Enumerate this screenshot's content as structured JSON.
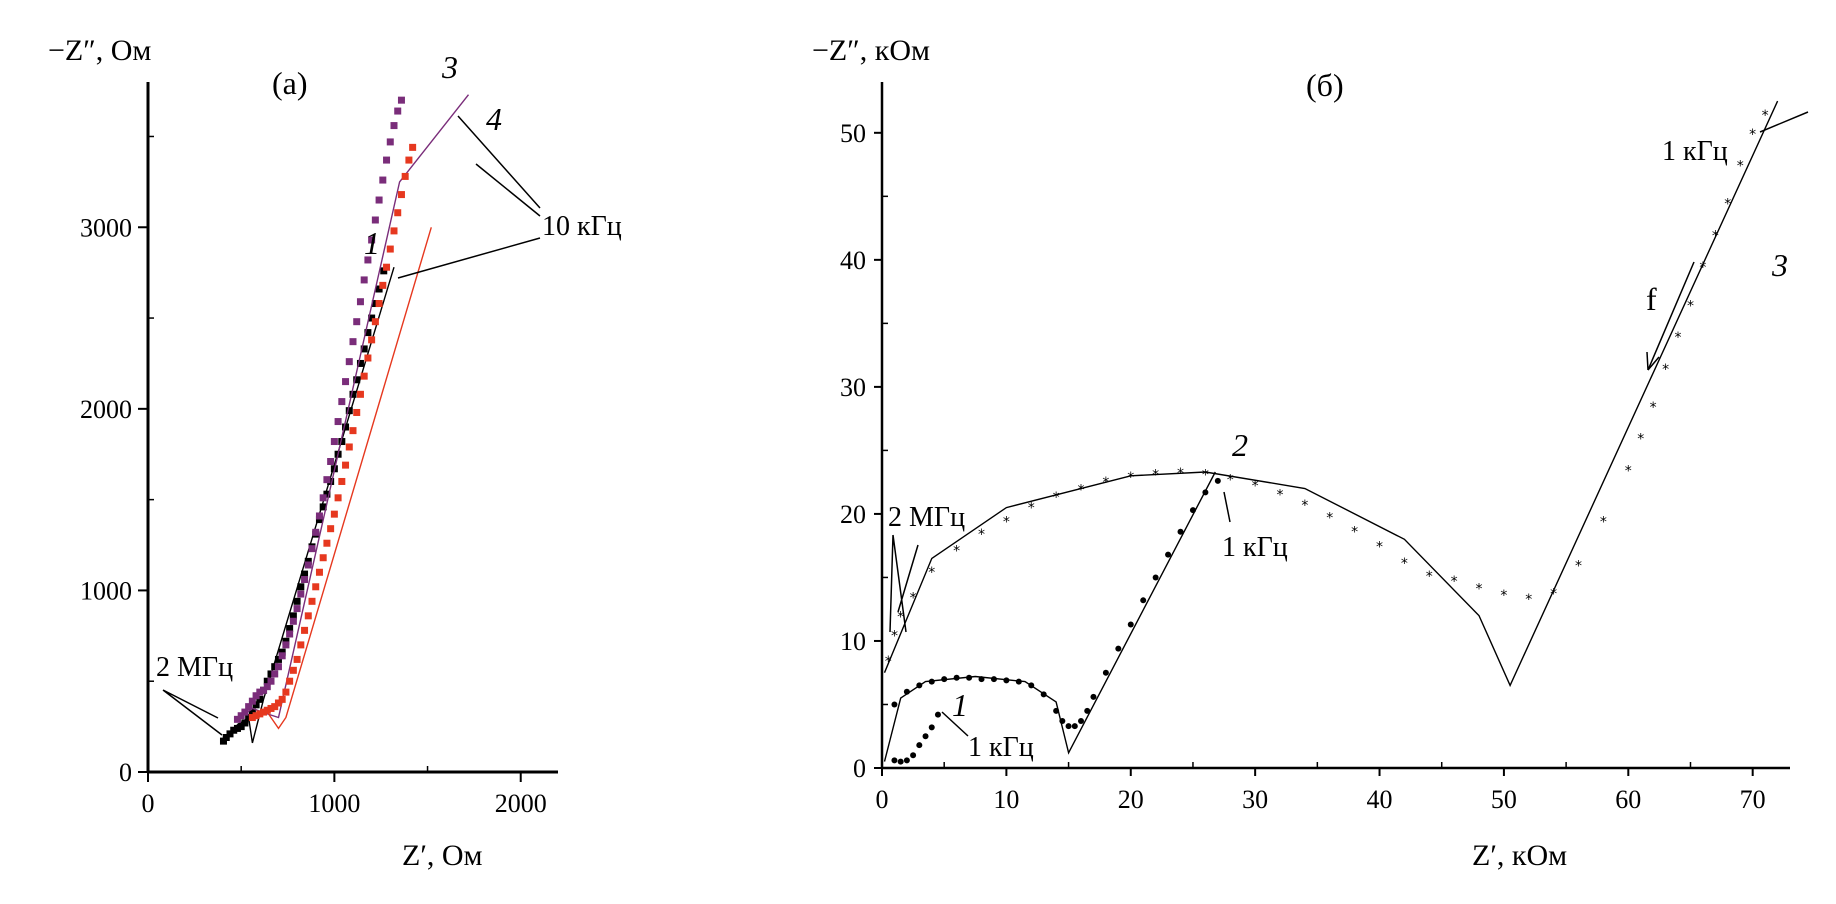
{
  "chart_data": [
    {
      "panel": "a",
      "type": "scatter",
      "title": "(а)",
      "ylabel": "−Z″, Ом",
      "xlabel": "Z′, Ом",
      "xlim": [
        0,
        2200
      ],
      "ylim": [
        0,
        3800
      ],
      "xticks": [
        0,
        1000,
        2000
      ],
      "yticks": [
        0,
        1000,
        2000,
        3000
      ],
      "xtick_labels": [
        "0",
        "1000",
        "2000"
      ],
      "ytick_labels": [
        "0",
        "1000",
        "2000",
        "3000"
      ],
      "annotations": [
        {
          "text": "2 МГц",
          "at": [
            420,
            250
          ]
        },
        {
          "text": "10 кГц",
          "at": [
            1300,
            2800
          ]
        }
      ],
      "series": [
        {
          "name": "1",
          "color": "#000000",
          "marker": "square",
          "points": [
            [
              405,
              170
            ],
            [
              420,
              190
            ],
            [
              440,
              210
            ],
            [
              460,
              230
            ],
            [
              480,
              240
            ],
            [
              500,
              250
            ],
            [
              520,
              270
            ],
            [
              540,
              300
            ],
            [
              560,
              330
            ],
            [
              580,
              370
            ],
            [
              600,
              400
            ],
            [
              620,
              450
            ],
            [
              640,
              500
            ],
            [
              660,
              540
            ],
            [
              680,
              580
            ],
            [
              700,
              620
            ],
            [
              720,
              660
            ],
            [
              740,
              720
            ],
            [
              760,
              790
            ],
            [
              780,
              860
            ],
            [
              800,
              940
            ],
            [
              820,
              1020
            ],
            [
              840,
              1090
            ],
            [
              860,
              1160
            ],
            [
              880,
              1240
            ],
            [
              900,
              1310
            ],
            [
              920,
              1390
            ],
            [
              940,
              1460
            ],
            [
              960,
              1530
            ],
            [
              980,
              1600
            ],
            [
              1000,
              1670
            ],
            [
              1020,
              1750
            ],
            [
              1040,
              1820
            ],
            [
              1060,
              1900
            ],
            [
              1080,
              1990
            ],
            [
              1100,
              2080
            ],
            [
              1120,
              2160
            ],
            [
              1140,
              2250
            ],
            [
              1160,
              2330
            ],
            [
              1180,
              2420
            ],
            [
              1200,
              2500
            ],
            [
              1220,
              2580
            ],
            [
              1240,
              2660
            ],
            [
              1265,
              2760
            ]
          ],
          "fit": [
            [
              400,
              180
            ],
            [
              480,
              260
            ],
            [
              540,
              300
            ],
            [
              560,
              160
            ],
            [
              620,
              400
            ],
            [
              1320,
              2780
            ]
          ]
        },
        {
          "name": "3",
          "color": "#7a2d7a",
          "marker": "square",
          "points": [
            [
              480,
              290
            ],
            [
              500,
              310
            ],
            [
              520,
              330
            ],
            [
              540,
              360
            ],
            [
              560,
              390
            ],
            [
              580,
              420
            ],
            [
              600,
              440
            ],
            [
              620,
              450
            ],
            [
              640,
              470
            ],
            [
              660,
              500
            ],
            [
              680,
              540
            ],
            [
              700,
              580
            ],
            [
              720,
              640
            ],
            [
              740,
              700
            ],
            [
              760,
              760
            ],
            [
              780,
              830
            ],
            [
              800,
              900
            ],
            [
              820,
              980
            ],
            [
              840,
              1060
            ],
            [
              860,
              1140
            ],
            [
              880,
              1230
            ],
            [
              900,
              1320
            ],
            [
              920,
              1410
            ],
            [
              940,
              1510
            ],
            [
              960,
              1610
            ],
            [
              980,
              1710
            ],
            [
              1000,
              1820
            ],
            [
              1020,
              1930
            ],
            [
              1040,
              2040
            ],
            [
              1060,
              2150
            ],
            [
              1080,
              2260
            ],
            [
              1100,
              2370
            ],
            [
              1120,
              2480
            ],
            [
              1140,
              2590
            ],
            [
              1160,
              2710
            ],
            [
              1180,
              2820
            ],
            [
              1200,
              2930
            ],
            [
              1220,
              3040
            ],
            [
              1240,
              3150
            ],
            [
              1260,
              3260
            ],
            [
              1280,
              3370
            ],
            [
              1300,
              3470
            ],
            [
              1320,
              3560
            ],
            [
              1340,
              3640
            ],
            [
              1360,
              3700
            ]
          ],
          "fit": [
            [
              470,
              280
            ],
            [
              560,
              350
            ],
            [
              640,
              320
            ],
            [
              700,
              300
            ],
            [
              1350,
              3250
            ],
            [
              1720,
              3730
            ]
          ]
        },
        {
          "name": "4",
          "color": "#e6381f",
          "marker": "square",
          "points": [
            [
              560,
              300
            ],
            [
              580,
              310
            ],
            [
              600,
              320
            ],
            [
              620,
              330
            ],
            [
              640,
              340
            ],
            [
              660,
              350
            ],
            [
              680,
              360
            ],
            [
              700,
              380
            ],
            [
              720,
              400
            ],
            [
              740,
              440
            ],
            [
              760,
              500
            ],
            [
              780,
              560
            ],
            [
              800,
              620
            ],
            [
              820,
              700
            ],
            [
              840,
              780
            ],
            [
              860,
              860
            ],
            [
              880,
              940
            ],
            [
              900,
              1020
            ],
            [
              920,
              1100
            ],
            [
              940,
              1180
            ],
            [
              960,
              1260
            ],
            [
              980,
              1340
            ],
            [
              1000,
              1420
            ],
            [
              1020,
              1510
            ],
            [
              1040,
              1600
            ],
            [
              1060,
              1690
            ],
            [
              1080,
              1790
            ],
            [
              1100,
              1880
            ],
            [
              1120,
              1980
            ],
            [
              1140,
              2080
            ],
            [
              1160,
              2180
            ],
            [
              1180,
              2280
            ],
            [
              1200,
              2380
            ],
            [
              1220,
              2480
            ],
            [
              1240,
              2580
            ],
            [
              1260,
              2680
            ],
            [
              1280,
              2780
            ],
            [
              1300,
              2880
            ],
            [
              1320,
              2980
            ],
            [
              1340,
              3080
            ],
            [
              1360,
              3180
            ],
            [
              1380,
              3280
            ],
            [
              1400,
              3370
            ],
            [
              1420,
              3440
            ]
          ],
          "fit": [
            [
              560,
              290
            ],
            [
              640,
              330
            ],
            [
              700,
              240
            ],
            [
              740,
              300
            ],
            [
              1520,
              3000
            ]
          ]
        }
      ]
    },
    {
      "panel": "b",
      "type": "scatter",
      "title": "(б)",
      "ylabel": "−Z″, кОм",
      "xlabel": "Z′, кОм",
      "xlim": [
        0,
        73
      ],
      "ylim": [
        0,
        54
      ],
      "xticks": [
        0,
        10,
        20,
        30,
        40,
        50,
        60,
        70
      ],
      "yticks": [
        0,
        10,
        20,
        30,
        40,
        50
      ],
      "xtick_labels": [
        "0",
        "10",
        "20",
        "30",
        "40",
        "50",
        "60",
        "70"
      ],
      "ytick_labels": [
        "0",
        "10",
        "20",
        "30",
        "40",
        "50"
      ],
      "annotations": [
        {
          "text": "2 МГц",
          "at": [
            1.5,
            15
          ]
        },
        {
          "text": "1 кГц",
          "at": [
            27,
            20.5
          ]
        },
        {
          "text": "1 кГц",
          "at": [
            5,
            3
          ]
        },
        {
          "text": "1 кГц",
          "at": [
            67,
            48
          ]
        },
        {
          "text": "f",
          "at": [
            62,
            37
          ]
        }
      ],
      "series": [
        {
          "name": "1",
          "color": "#000000",
          "marker": "dot",
          "points": [
            [
              1.0,
              0.6
            ],
            [
              1.5,
              0.5
            ],
            [
              2.0,
              0.6
            ],
            [
              2.5,
              1.0
            ],
            [
              3.0,
              1.8
            ],
            [
              3.5,
              2.5
            ],
            [
              4.0,
              3.2
            ],
            [
              4.5,
              4.2
            ]
          ],
          "fit": []
        },
        {
          "name": "2",
          "color": "#000000",
          "marker": "dot",
          "points": [
            [
              1.0,
              5.0
            ],
            [
              2.0,
              6.0
            ],
            [
              3.0,
              6.5
            ],
            [
              4.0,
              6.8
            ],
            [
              5.0,
              7.0
            ],
            [
              6.0,
              7.1
            ],
            [
              7.0,
              7.1
            ],
            [
              8.0,
              7.0
            ],
            [
              9.0,
              7.0
            ],
            [
              10.0,
              6.9
            ],
            [
              11.0,
              6.8
            ],
            [
              12.0,
              6.5
            ],
            [
              13.0,
              5.8
            ],
            [
              14.0,
              4.5
            ],
            [
              14.5,
              3.7
            ],
            [
              15.0,
              3.3
            ],
            [
              15.5,
              3.3
            ],
            [
              16.0,
              3.7
            ],
            [
              16.5,
              4.5
            ],
            [
              17.0,
              5.6
            ],
            [
              18.0,
              7.5
            ],
            [
              19.0,
              9.4
            ],
            [
              20.0,
              11.3
            ],
            [
              21.0,
              13.2
            ],
            [
              22.0,
              15.0
            ],
            [
              23.0,
              16.8
            ],
            [
              24.0,
              18.6
            ],
            [
              25.0,
              20.3
            ],
            [
              26.0,
              21.7
            ],
            [
              27.0,
              22.6
            ]
          ],
          "fit": [
            [
              0.2,
              0.5
            ],
            [
              1.5,
              5.5
            ],
            [
              3.5,
              6.8
            ],
            [
              7.5,
              7.2
            ],
            [
              11.5,
              6.8
            ],
            [
              14.0,
              5.2
            ],
            [
              15.0,
              1.2
            ],
            [
              26.8,
              23.3
            ]
          ]
        },
        {
          "name": "3",
          "color": "#000000",
          "marker": "star",
          "points": [
            [
              0.5,
              8.5
            ],
            [
              1.0,
              10.5
            ],
            [
              1.5,
              12.0
            ],
            [
              2.5,
              13.5
            ],
            [
              4.0,
              15.5
            ],
            [
              6.0,
              17.2
            ],
            [
              8.0,
              18.5
            ],
            [
              10.0,
              19.5
            ],
            [
              12.0,
              20.6
            ],
            [
              14.0,
              21.4
            ],
            [
              16.0,
              22.0
            ],
            [
              18.0,
              22.6
            ],
            [
              20.0,
              23.0
            ],
            [
              22.0,
              23.2
            ],
            [
              24.0,
              23.3
            ],
            [
              26.0,
              23.2
            ],
            [
              28.0,
              22.8
            ],
            [
              30.0,
              22.3
            ],
            [
              32.0,
              21.6
            ],
            [
              34.0,
              20.8
            ],
            [
              36.0,
              19.8
            ],
            [
              38.0,
              18.7
            ],
            [
              40.0,
              17.5
            ],
            [
              42.0,
              16.2
            ],
            [
              44.0,
              15.2
            ],
            [
              46.0,
              14.8
            ],
            [
              48.0,
              14.2
            ],
            [
              50.0,
              13.7
            ],
            [
              52.0,
              13.4
            ],
            [
              54.0,
              13.8
            ],
            [
              56.0,
              16.0
            ],
            [
              58.0,
              19.5
            ],
            [
              60.0,
              23.5
            ],
            [
              61.0,
              26.0
            ],
            [
              62.0,
              28.5
            ],
            [
              63.0,
              31.5
            ],
            [
              64.0,
              34.0
            ],
            [
              65.0,
              36.5
            ],
            [
              66.0,
              39.5
            ],
            [
              67.0,
              42.0
            ],
            [
              68.0,
              44.5
            ],
            [
              69.0,
              47.5
            ],
            [
              70.0,
              50.0
            ],
            [
              71.0,
              51.5
            ]
          ],
          "fit": [
            [
              0.2,
              7.5
            ],
            [
              4,
              16.5
            ],
            [
              10,
              20.5
            ],
            [
              20,
              23
            ],
            [
              26,
              23.3
            ],
            [
              34,
              22
            ],
            [
              42,
              18
            ],
            [
              48,
              12
            ],
            [
              50.5,
              6.5
            ],
            [
              72,
              52.5
            ]
          ]
        }
      ]
    }
  ]
}
